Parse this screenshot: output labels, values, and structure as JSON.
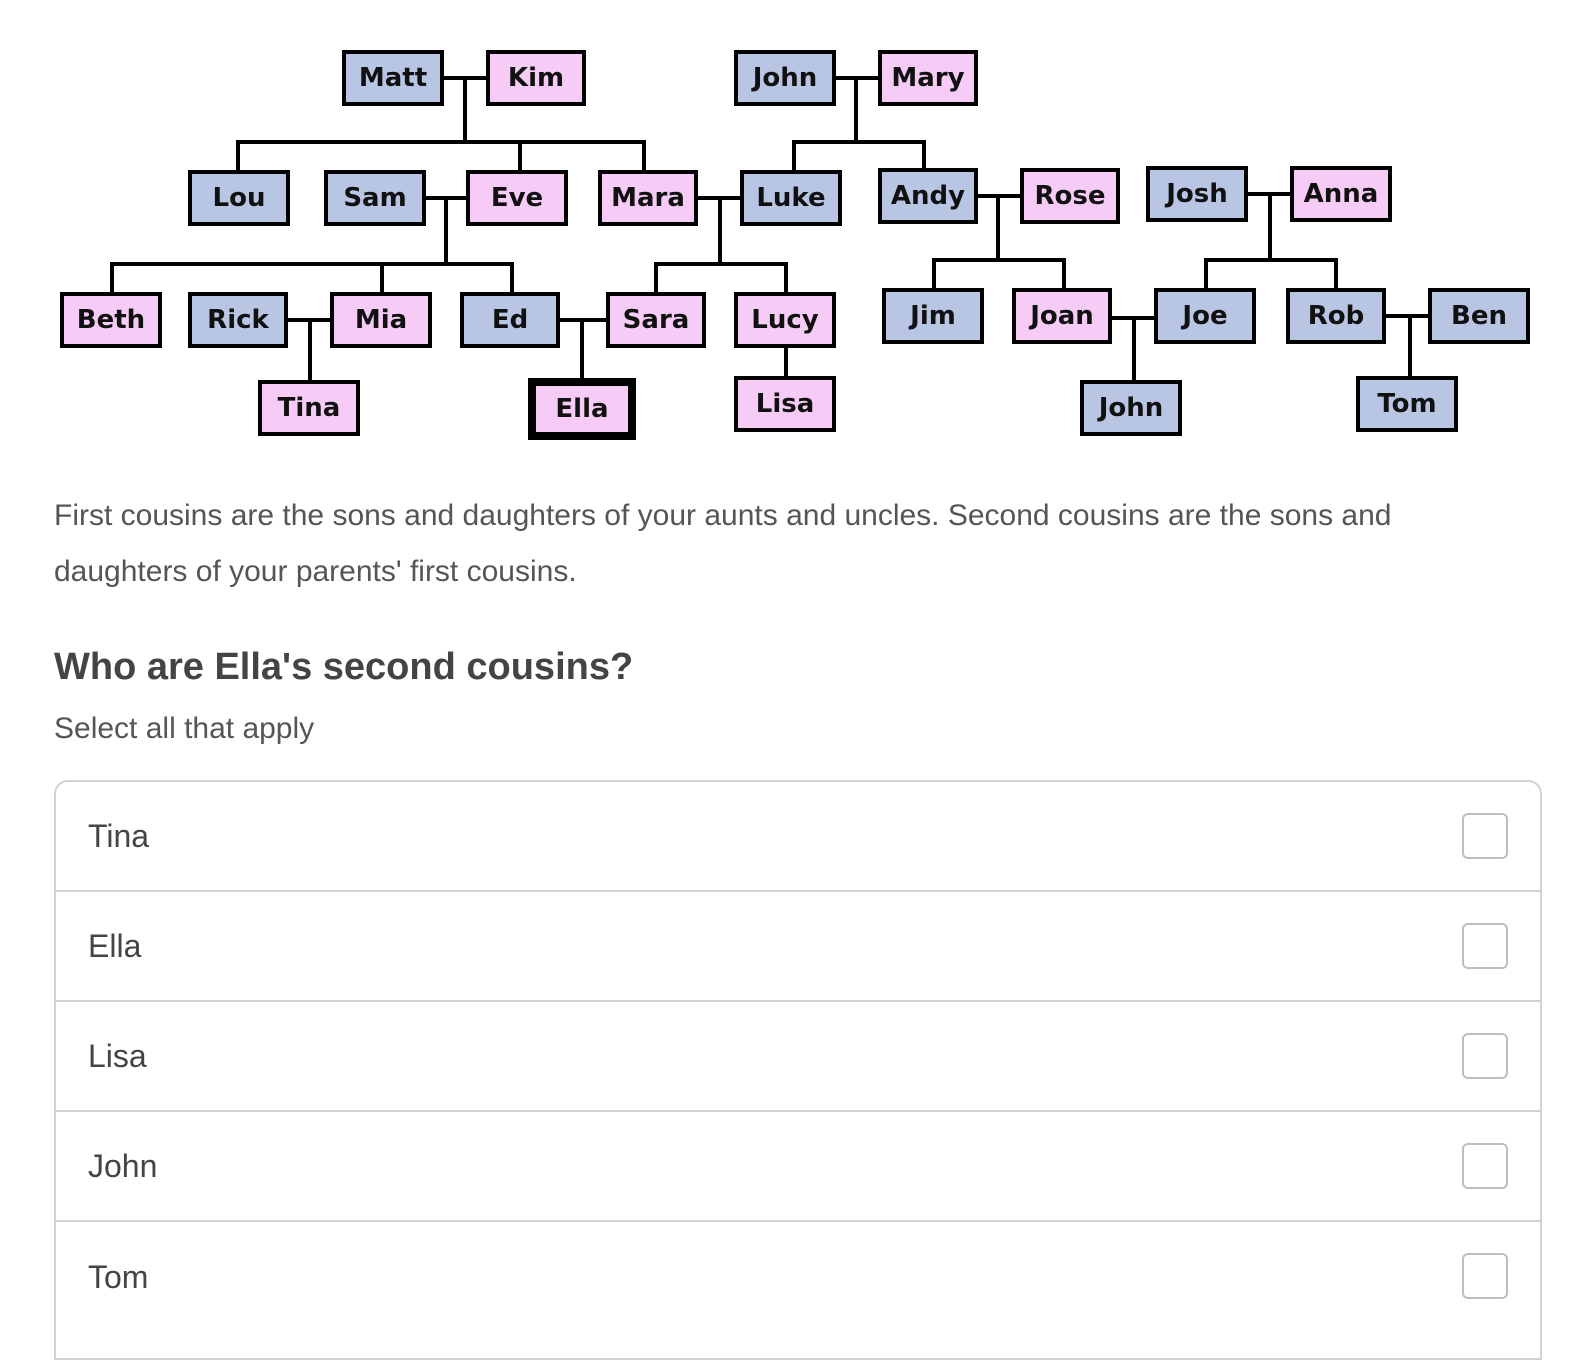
{
  "family_tree": {
    "people": [
      {
        "name": "Matt",
        "gender": "male"
      },
      {
        "name": "Kim",
        "gender": "female"
      },
      {
        "name": "John",
        "gender": "male"
      },
      {
        "name": "Mary",
        "gender": "female"
      },
      {
        "name": "Lou",
        "gender": "male"
      },
      {
        "name": "Sam",
        "gender": "male"
      },
      {
        "name": "Eve",
        "gender": "female"
      },
      {
        "name": "Mara",
        "gender": "female"
      },
      {
        "name": "Luke",
        "gender": "male"
      },
      {
        "name": "Andy",
        "gender": "male"
      },
      {
        "name": "Rose",
        "gender": "female"
      },
      {
        "name": "Josh",
        "gender": "male"
      },
      {
        "name": "Anna",
        "gender": "female"
      },
      {
        "name": "Beth",
        "gender": "female"
      },
      {
        "name": "Rick",
        "gender": "male"
      },
      {
        "name": "Mia",
        "gender": "female"
      },
      {
        "name": "Ed",
        "gender": "male"
      },
      {
        "name": "Sara",
        "gender": "female"
      },
      {
        "name": "Lucy",
        "gender": "female"
      },
      {
        "name": "Jim",
        "gender": "male"
      },
      {
        "name": "Joan",
        "gender": "female"
      },
      {
        "name": "Joe",
        "gender": "male"
      },
      {
        "name": "Rob",
        "gender": "male"
      },
      {
        "name": "Ben",
        "gender": "male"
      },
      {
        "name": "Tina",
        "gender": "female"
      },
      {
        "name": "Ella",
        "gender": "female"
      },
      {
        "name": "Lisa",
        "gender": "female"
      },
      {
        "name": "John",
        "gender": "male"
      },
      {
        "name": "Tom",
        "gender": "male"
      }
    ],
    "highlighted": "Ella",
    "colors": {
      "male": "#b8c6e4",
      "female": "#f6ccf6",
      "border": "#000000"
    }
  },
  "description": "First cousins are the sons and daughters of your aunts and uncles. Second cousins are the sons and daughters of your parents' first cousins.",
  "question": "Who are Ella's second cousins?",
  "instruction": "Select all that apply",
  "options": [
    {
      "label": "Tina",
      "checked": false
    },
    {
      "label": "Ella",
      "checked": false
    },
    {
      "label": "Lisa",
      "checked": false
    },
    {
      "label": "John",
      "checked": false
    },
    {
      "label": "Tom",
      "checked": false
    }
  ]
}
